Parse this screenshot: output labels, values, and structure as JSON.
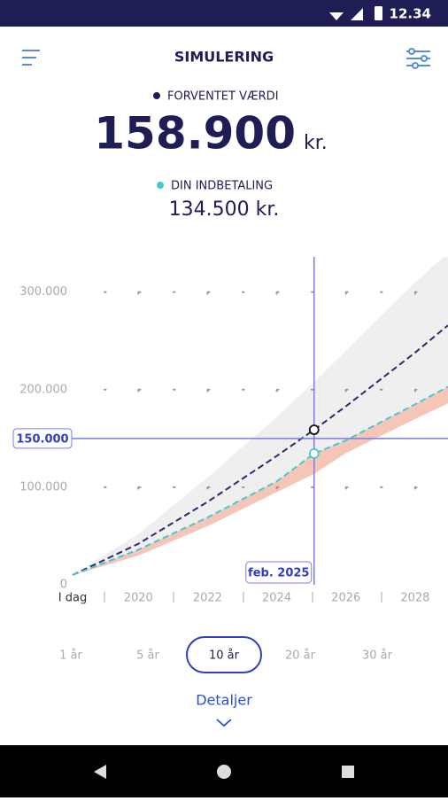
{
  "status_bar": {
    "time": "12.34"
  },
  "header": {
    "title": "SIMULERING"
  },
  "summary": {
    "expected_label": "FORVENTET VÆRDI",
    "expected_value": "158.900",
    "expected_unit": "kr.",
    "payment_label": "DIN INDBETALING",
    "payment_value": "134.500 kr."
  },
  "chart": {
    "type": "line",
    "x": [
      2018.1,
      2020,
      2022,
      2024,
      2025.08,
      2026,
      2028,
      2028.95
    ],
    "series": [
      {
        "color": "#2b2a6e",
        "values": [
          10000,
          42000,
          85000,
          132000,
          158900,
          183000,
          238000,
          266000
        ]
      },
      {
        "color": "#45c9cf",
        "values": [
          10000,
          36000,
          69000,
          106000,
          134500,
          148000,
          185000,
          203000
        ]
      }
    ],
    "band_upper": [
      10000,
      52000,
      110000,
      172000,
      208000,
      240000,
      310000,
      340000
    ],
    "band_lower": [
      10000,
      30000,
      60000,
      95000,
      113600,
      135000,
      170000,
      186000
    ],
    "band_color": "#efefef",
    "low_band_color": "#f5c5b7",
    "xlim": [
      2018.1,
      2028.95
    ],
    "ylim": [
      0,
      336000
    ],
    "xticks": [
      {
        "value": 2018.1,
        "label": "I dag"
      },
      2020,
      2022,
      2024,
      2026,
      2028
    ],
    "yticks": [
      0,
      {
        "value": 100000,
        "label": "100.000"
      },
      {
        "value": 200000,
        "label": "200.000"
      },
      {
        "value": 300000,
        "label": "300.000"
      }
    ],
    "grid": true,
    "cursor": {
      "x": 2025.08,
      "x_label": "feb. 2025",
      "y": 150000,
      "y_label": "150.000",
      "color": "#7b7be8"
    }
  },
  "tabs": {
    "options": [
      "1 år",
      "5 år",
      "10 år",
      "20 år",
      "30 år"
    ],
    "selected": 2
  },
  "details": {
    "label": "Detaljer"
  }
}
